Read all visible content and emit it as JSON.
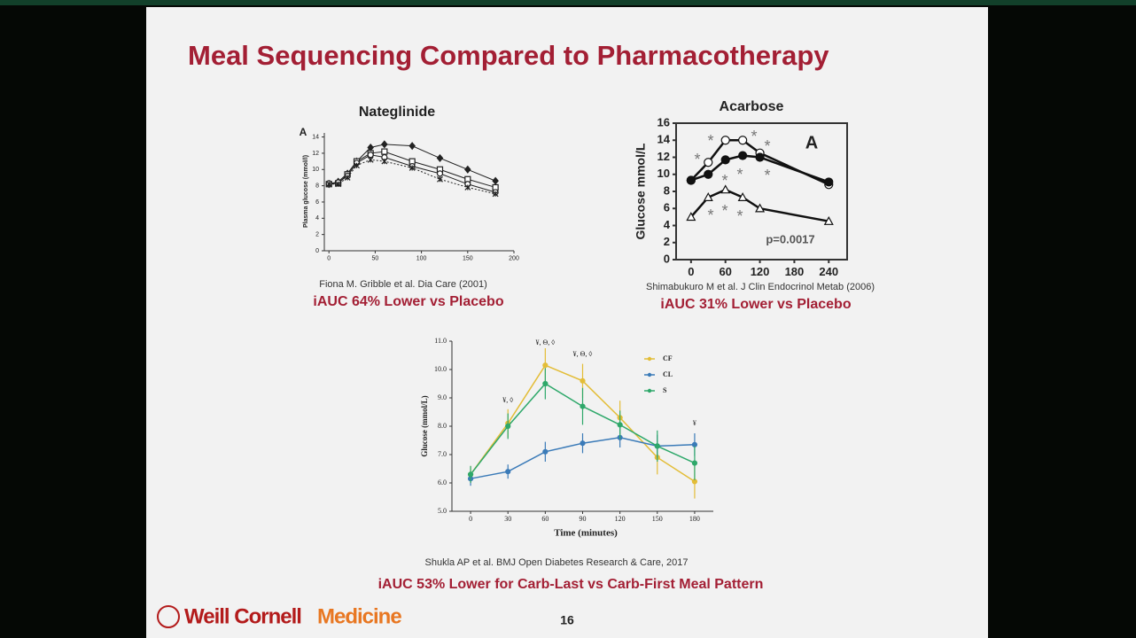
{
  "slide": {
    "title": "Meal Sequencing Compared to Pharmacotherapy",
    "logo_primary": "Weill Cornell",
    "logo_secondary": "Medicine",
    "page_number": "16"
  },
  "chart_data": [
    {
      "type": "line",
      "title": "Nateglinide",
      "ylabel": "Plasma glucose (mmol/l)",
      "annotations": [
        "A"
      ],
      "source": "Fiona M. Gribble et al. Dia Care (2001)",
      "note": "iAUC  64% Lower vs Placebo",
      "x": [
        0,
        10,
        20,
        30,
        45,
        60,
        90,
        120,
        150,
        180
      ],
      "xlim": [
        -5,
        200
      ],
      "xticks": [
        0,
        50,
        100,
        150,
        200
      ],
      "ylim": [
        0,
        14.5
      ],
      "yticks": [
        0,
        2,
        4,
        6,
        8,
        10,
        12,
        14
      ],
      "series": [
        {
          "color": "#222222",
          "marker": "diamond",
          "values": [
            8.2,
            8.5,
            9.5,
            11,
            12.7,
            13.1,
            12.9,
            11.4,
            10,
            8.6
          ]
        },
        {
          "color": "#222222",
          "marker": "square-open",
          "values": [
            8.2,
            8.3,
            9.4,
            11,
            12,
            12.2,
            11,
            10,
            8.8,
            7.8
          ]
        },
        {
          "color": "#222222",
          "marker": "circle-open",
          "values": [
            8.3,
            8.4,
            9.2,
            10.8,
            11.8,
            11.5,
            10.4,
            9.5,
            8.2,
            7.2
          ]
        },
        {
          "color": "#222222",
          "marker": "star",
          "dashed": true,
          "values": [
            8.2,
            8.2,
            9,
            10.5,
            11.2,
            11,
            10.2,
            8.8,
            7.8,
            7
          ]
        }
      ]
    },
    {
      "type": "line",
      "title": "Acarbose",
      "ylabel": "Glucose mmol/L",
      "annotations": [
        "A",
        "p=0.0017"
      ],
      "significance_mark": "*",
      "source": "Shimabukuro M et al. J Clin Endocrinol Metab (2006)",
      "note": "iAUC  31% Lower vs Placebo",
      "x": [
        0,
        30,
        60,
        90,
        120,
        240
      ],
      "xlim": [
        -26,
        272
      ],
      "xticks": [
        0,
        60,
        120,
        180,
        240
      ],
      "ylim": [
        0,
        16
      ],
      "yticks": [
        0,
        2,
        4,
        6,
        8,
        10,
        12,
        14,
        16
      ],
      "series": [
        {
          "color": "#111111",
          "marker": "circle-open",
          "values": [
            9.3,
            11.4,
            14,
            14,
            12.5,
            8.8
          ]
        },
        {
          "color": "#111111",
          "marker": "circle",
          "values": [
            9.3,
            10,
            11.7,
            12.2,
            12,
            9.1
          ]
        },
        {
          "color": "#111111",
          "marker": "triangle-open",
          "values": [
            5,
            7.3,
            8.2,
            7.3,
            6,
            4.5
          ]
        }
      ]
    },
    {
      "type": "line",
      "xlabel": "Time (minutes)",
      "ylabel": "Glucose (mmol/L)",
      "legend": "upper right",
      "source": "Shukla AP et al. BMJ Open Diabetes Research & Care, 2017",
      "note": "iAUC 53% Lower for Carb-Last vs Carb-First Meal Pattern",
      "annotations": [
        {
          "x": 30,
          "text": "¥, ◊"
        },
        {
          "x": 60,
          "text": "¥, Θ, ◊"
        },
        {
          "x": 90,
          "text": "¥, Θ, ◊"
        },
        {
          "x": 180,
          "text": "¥"
        }
      ],
      "x": [
        0,
        30,
        60,
        90,
        120,
        150,
        180
      ],
      "xlim": [
        -15,
        195
      ],
      "xticks": [
        0,
        30,
        60,
        90,
        120,
        150,
        180
      ],
      "ylim": [
        5,
        11
      ],
      "yticks": [
        {
          "value": 5,
          "label": "5.0"
        },
        {
          "value": 6,
          "label": "6.0"
        },
        {
          "value": 7,
          "label": "7.0"
        },
        {
          "value": 8,
          "label": "8.0"
        },
        {
          "value": 9,
          "label": "9.0"
        },
        {
          "value": 10,
          "label": "10.0"
        },
        {
          "value": 11,
          "label": "11.0"
        }
      ],
      "series": [
        {
          "name": "CF",
          "color": "#e3bd37",
          "marker": "circle",
          "values": [
            6.3,
            8.1,
            10.15,
            9.6,
            8.3,
            6.9,
            6.05
          ],
          "errors": [
            0.3,
            0.5,
            0.6,
            0.6,
            0.6,
            0.6,
            0.6
          ]
        },
        {
          "name": "CL",
          "color": "#3b7bb8",
          "marker": "circle",
          "values": [
            6.15,
            6.4,
            7.1,
            7.4,
            7.6,
            7.3,
            7.35
          ],
          "errors": [
            0.25,
            0.25,
            0.35,
            0.35,
            0.35,
            0.4,
            0.4
          ]
        },
        {
          "name": "S",
          "color": "#2ea86a",
          "marker": "circle",
          "values": [
            6.3,
            8,
            9.5,
            8.7,
            8.05,
            7.3,
            6.7
          ],
          "errors": [
            0.3,
            0.45,
            0.55,
            0.65,
            0.5,
            0.55,
            0.6
          ]
        }
      ]
    }
  ]
}
